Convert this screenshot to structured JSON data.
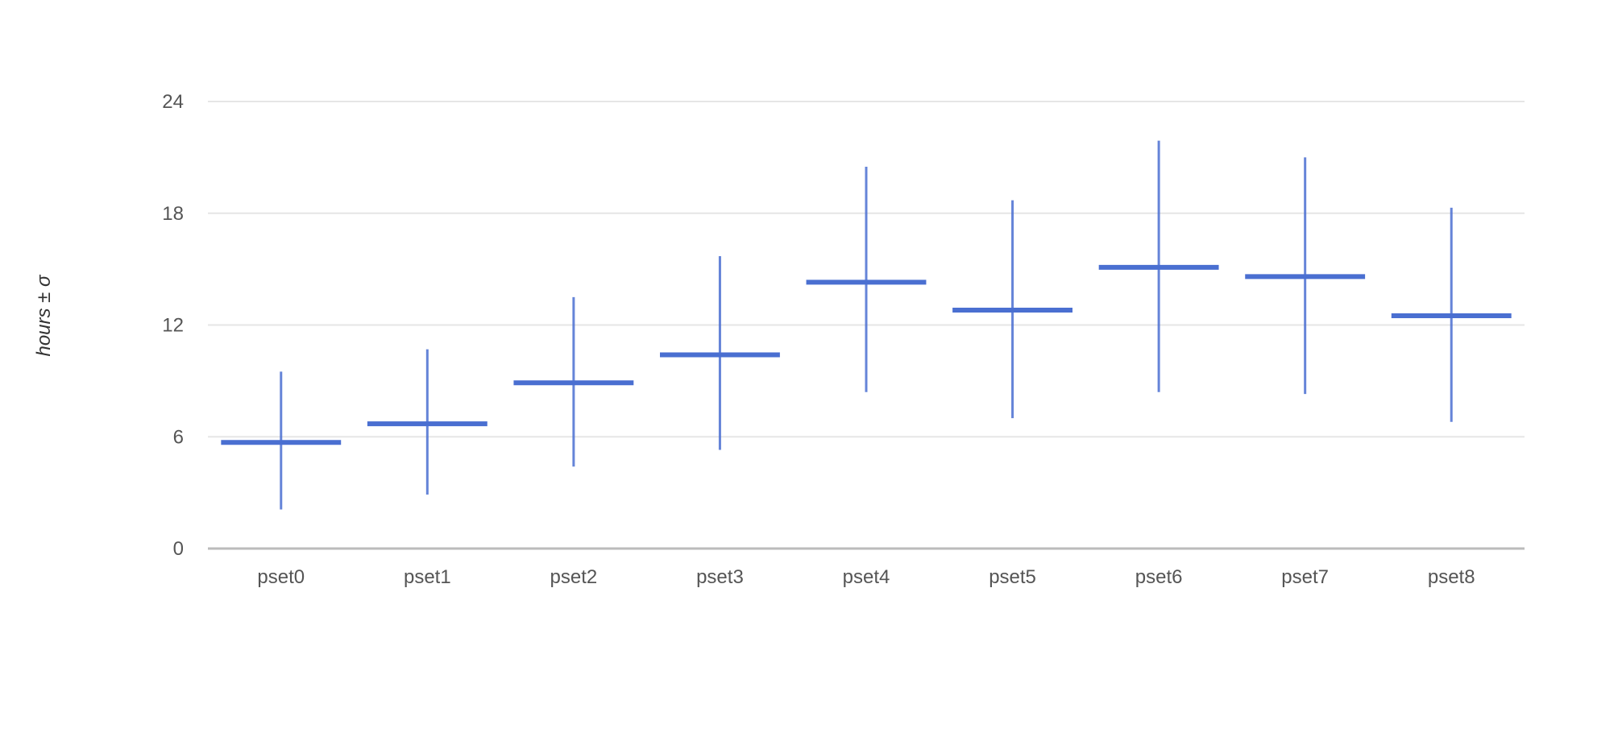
{
  "chart_data": {
    "type": "scatter",
    "chart_style": "error-bars with mean markers",
    "title": "",
    "xlabel": "",
    "ylabel": "hours ± σ",
    "categories": [
      "pset0",
      "pset1",
      "pset2",
      "pset3",
      "pset4",
      "pset5",
      "pset6",
      "pset7",
      "pset8"
    ],
    "series": [
      {
        "mean": [
          5.7,
          6.7,
          8.9,
          10.4,
          14.3,
          12.8,
          15.1,
          14.6,
          12.5
        ],
        "lower": [
          2.1,
          2.9,
          4.4,
          5.3,
          8.4,
          7.0,
          8.4,
          8.3,
          6.8
        ],
        "upper": [
          9.5,
          10.7,
          13.5,
          15.7,
          20.5,
          18.7,
          21.9,
          21.0,
          18.3
        ]
      }
    ],
    "ylim": [
      0,
      24
    ],
    "yticks": [
      0,
      6,
      12,
      18,
      24
    ],
    "grid": true,
    "legend": "none",
    "colors": {
      "series": "#4a6fd1",
      "grid": "#e6e6e6",
      "baseline": "#bbbbbb",
      "tick_text": "#555555"
    }
  }
}
